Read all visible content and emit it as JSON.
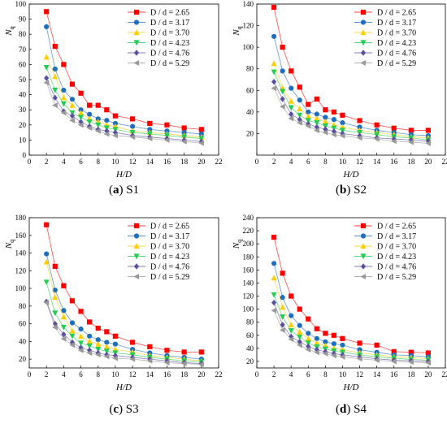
{
  "chart_data": [
    {
      "type": "scatter",
      "panel_letter": "a",
      "panel_name": "S1",
      "xlabel": "H/D",
      "ylabel": "N",
      "ylabel_sub": "q",
      "xlim": [
        0,
        22
      ],
      "ylim": [
        0,
        100
      ],
      "xticks": [
        0,
        2,
        4,
        6,
        8,
        10,
        12,
        14,
        16,
        18,
        20,
        22
      ],
      "yticks": [
        0,
        10,
        20,
        30,
        40,
        50,
        60,
        70,
        80,
        90,
        100
      ],
      "x": [
        2,
        3,
        4,
        5,
        6,
        7,
        8,
        9,
        10,
        12,
        14,
        16,
        18,
        20
      ],
      "series": [
        {
          "name": "D / d = 2.65",
          "values": [
            95,
            72,
            60,
            47,
            41,
            33,
            33,
            30,
            26,
            24,
            21,
            20,
            18,
            17
          ]
        },
        {
          "name": "D / d = 3.17",
          "values": [
            85,
            57,
            43,
            37,
            30,
            27,
            24,
            23,
            21,
            19,
            17,
            16,
            15,
            14
          ]
        },
        {
          "name": "D / d = 3.70",
          "values": [
            65,
            52,
            38,
            33,
            28,
            24,
            22,
            20,
            19,
            16,
            15,
            14,
            13,
            12
          ]
        },
        {
          "name": "D / d = 4.23",
          "values": [
            58,
            43,
            34,
            28,
            25,
            22,
            20,
            18,
            17,
            15,
            14,
            13,
            12,
            11
          ]
        },
        {
          "name": "D / d = 4.76",
          "values": [
            51,
            38,
            29,
            26,
            22,
            19,
            17,
            16,
            15,
            13,
            12,
            11,
            10,
            9
          ]
        },
        {
          "name": "D / d = 5.29",
          "values": [
            48,
            33,
            28,
            23,
            20,
            18,
            16,
            14,
            13,
            12,
            11,
            10,
            9,
            8
          ]
        }
      ]
    },
    {
      "type": "scatter",
      "panel_letter": "b",
      "panel_name": "S2",
      "xlabel": "H/D",
      "ylabel": "N",
      "ylabel_sub": "q",
      "xlim": [
        0,
        22
      ],
      "ylim": [
        0,
        140
      ],
      "xticks": [
        0,
        2,
        4,
        6,
        8,
        10,
        12,
        14,
        16,
        18,
        20,
        22
      ],
      "yticks": [
        20,
        40,
        60,
        80,
        100,
        120,
        140
      ],
      "x": [
        2,
        3,
        4,
        5,
        6,
        7,
        8,
        9,
        10,
        12,
        14,
        16,
        18,
        20
      ],
      "series": [
        {
          "name": "D / d = 2.65",
          "values": [
            137,
            100,
            78,
            63,
            47,
            52,
            42,
            40,
            37,
            32,
            28,
            25,
            23,
            23
          ]
        },
        {
          "name": "D / d = 3.17",
          "values": [
            110,
            78,
            62,
            51,
            40,
            38,
            35,
            33,
            30,
            26,
            23,
            21,
            19,
            18
          ]
        },
        {
          "name": "D / d = 3.70",
          "values": [
            85,
            62,
            50,
            43,
            36,
            34,
            31,
            28,
            26,
            23,
            21,
            19,
            17,
            16
          ]
        },
        {
          "name": "D / d = 4.23",
          "values": [
            77,
            59,
            44,
            37,
            32,
            30,
            27,
            25,
            23,
            21,
            19,
            17,
            16,
            14
          ]
        },
        {
          "name": "D / d = 4.76",
          "values": [
            68,
            52,
            38,
            33,
            29,
            26,
            24,
            22,
            20,
            18,
            16,
            15,
            14,
            13
          ]
        },
        {
          "name": "D / d = 5.29",
          "values": [
            62,
            45,
            34,
            30,
            27,
            23,
            21,
            19,
            18,
            16,
            15,
            13,
            12,
            11
          ]
        }
      ]
    },
    {
      "type": "scatter",
      "panel_letter": "c",
      "panel_name": "S3",
      "xlabel": "H/D",
      "ylabel": "N",
      "ylabel_sub": "q",
      "xlim": [
        0,
        22
      ],
      "ylim": [
        10,
        180
      ],
      "xticks": [
        0,
        2,
        4,
        6,
        8,
        10,
        12,
        14,
        16,
        18,
        20,
        22
      ],
      "yticks": [
        20,
        40,
        60,
        80,
        100,
        120,
        140,
        160,
        180
      ],
      "x": [
        2,
        3,
        4,
        5,
        6,
        7,
        8,
        9,
        10,
        12,
        14,
        16,
        18,
        20
      ],
      "series": [
        {
          "name": "D / d = 2.65",
          "values": [
            172,
            125,
            103,
            86,
            74,
            62,
            55,
            51,
            46,
            39,
            34,
            30,
            28,
            28
          ]
        },
        {
          "name": "D / d = 3.17",
          "values": [
            139,
            98,
            75,
            61,
            54,
            46,
            42,
            39,
            37,
            31,
            27,
            24,
            22,
            20
          ]
        },
        {
          "name": "D / d = 3.70",
          "values": [
            130,
            90,
            68,
            52,
            46,
            40,
            37,
            34,
            31,
            28,
            24,
            22,
            20,
            18
          ]
        },
        {
          "name": "D / d = 4.23",
          "values": [
            107,
            72,
            56,
            46,
            38,
            35,
            31,
            29,
            27,
            25,
            22,
            20,
            18,
            17
          ]
        },
        {
          "name": "D / d = 4.76",
          "values": [
            85,
            60,
            48,
            39,
            33,
            30,
            27,
            25,
            24,
            22,
            20,
            18,
            16,
            15
          ]
        },
        {
          "name": "D / d = 5.29",
          "values": [
            84,
            56,
            43,
            36,
            30,
            27,
            25,
            23,
            21,
            20,
            18,
            16,
            15,
            14
          ]
        }
      ]
    },
    {
      "type": "scatter",
      "panel_letter": "d",
      "panel_name": "S4",
      "xlabel": "H/D",
      "ylabel": "N",
      "ylabel_sub": "q",
      "xlim": [
        0,
        22
      ],
      "ylim": [
        10,
        240
      ],
      "xticks": [
        0,
        2,
        4,
        6,
        8,
        10,
        12,
        14,
        16,
        18,
        20,
        22
      ],
      "yticks": [
        20,
        40,
        60,
        80,
        100,
        120,
        140,
        160,
        180,
        200,
        220,
        240
      ],
      "x": [
        2,
        3,
        4,
        5,
        6,
        7,
        8,
        9,
        10,
        12,
        14,
        16,
        18,
        20
      ],
      "series": [
        {
          "name": "D / d = 2.65",
          "values": [
            210,
            155,
            120,
            100,
            85,
            70,
            63,
            60,
            55,
            48,
            45,
            35,
            34,
            33
          ]
        },
        {
          "name": "D / d = 3.17",
          "values": [
            170,
            118,
            90,
            75,
            63,
            55,
            50,
            47,
            45,
            38,
            34,
            30,
            29,
            27
          ]
        },
        {
          "name": "D / d = 3.70",
          "values": [
            148,
            103,
            76,
            65,
            55,
            48,
            44,
            40,
            38,
            33,
            30,
            27,
            26,
            24
          ]
        },
        {
          "name": "D / d = 4.23",
          "values": [
            122,
            88,
            67,
            57,
            48,
            42,
            39,
            36,
            34,
            30,
            27,
            25,
            23,
            22
          ]
        },
        {
          "name": "D / d = 4.76",
          "values": [
            110,
            76,
            58,
            50,
            43,
            38,
            35,
            32,
            30,
            27,
            24,
            22,
            21,
            20
          ]
        },
        {
          "name": "D / d = 5.29",
          "values": [
            98,
            68,
            54,
            45,
            38,
            34,
            32,
            29,
            27,
            24,
            22,
            20,
            19,
            18
          ]
        }
      ]
    }
  ],
  "styles": {
    "colors": [
      "#ff0000",
      "#1f6fbf",
      "#ffcc00",
      "#22cc55",
      "#5b4fa0",
      "#999999"
    ],
    "markers": [
      "square",
      "circle",
      "triangle-up",
      "triangle-down",
      "diamond",
      "triangle-left"
    ],
    "grid": false,
    "legend_position": "top-right"
  }
}
